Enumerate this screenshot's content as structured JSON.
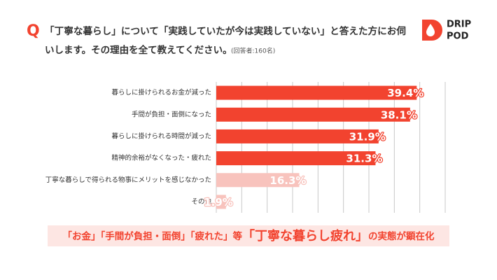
{
  "chart_data": {
    "type": "hbar",
    "question_mark": "Q",
    "question_lines": [
      "「丁寧な暮らし」について「実践していたが今は実践していない」と答えた方にお伺",
      "いします。その理由を全て教えてください。"
    ],
    "respondents": "(回答者:160名)",
    "brand": [
      "DRIP",
      "POD"
    ],
    "categories": [
      "暮らしに掛けられるお金が減った",
      "手間が負担・面倒になった",
      "暮らしに掛けられる時間が減った",
      "精神的余裕がなくなった・疲れた",
      "丁寧な暮らしで得られる物事にメリットを感じなかった",
      "その他"
    ],
    "values": [
      39.4,
      38.1,
      31.9,
      31.3,
      16.3,
      1.9
    ],
    "value_labels": [
      "39.4%",
      "38.1%",
      "31.9%",
      "31.3%",
      "16.3%",
      "1.9%"
    ],
    "colors": [
      "#f2432f",
      "#f2432f",
      "#f2432f",
      "#f2432f",
      "#f8c3bd",
      "#f8c3bd"
    ],
    "xlim": [
      0,
      45
    ],
    "xticks": [
      0,
      5,
      10,
      15,
      20,
      25,
      30,
      35,
      40,
      45
    ],
    "grid": true,
    "conclusion": [
      "「お金」「手間が負担・面倒」「疲れた」等",
      "「丁寧な暮らし疲れ」",
      "の実態が顕在化"
    ]
  }
}
